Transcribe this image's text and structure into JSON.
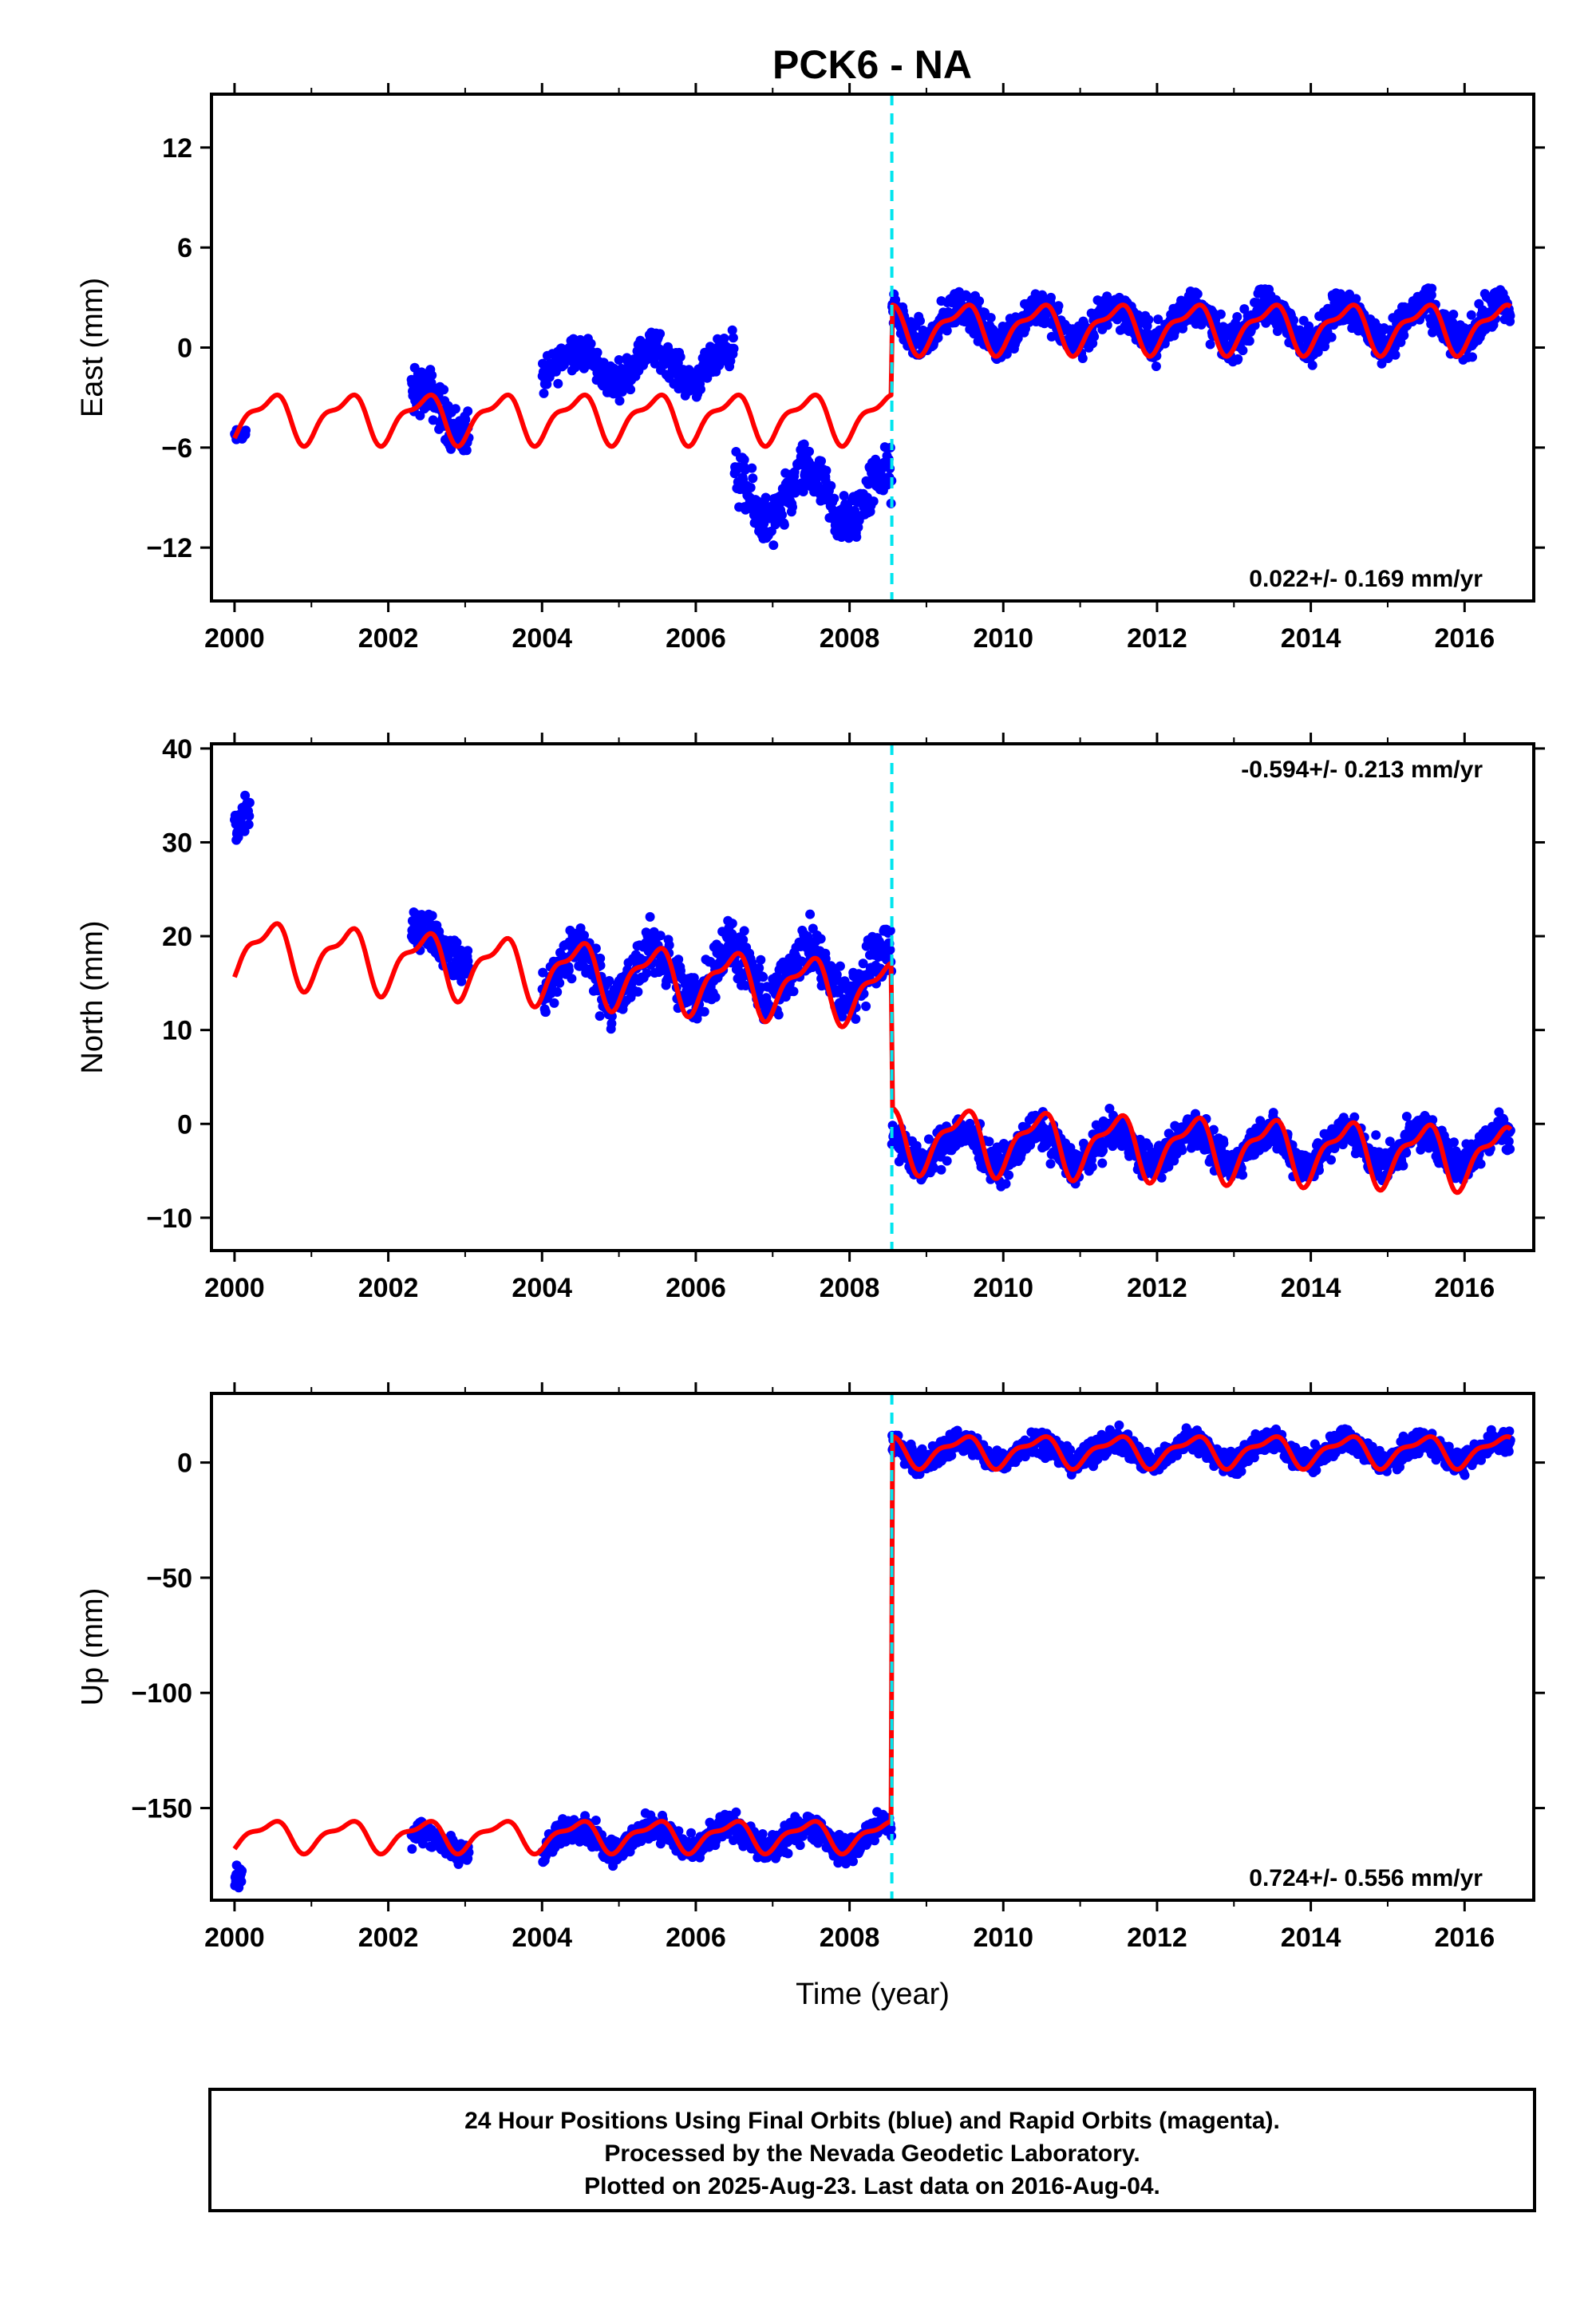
{
  "title": "PCK6 - NA",
  "colors": {
    "data": "#0000ff",
    "model": "#ff0000",
    "offset_marker": "#00e5ee",
    "frame": "#000000"
  },
  "chart_data": [
    {
      "type": "scatter",
      "ylabel": "East (mm)",
      "xlabel": "",
      "xlim": [
        1999.7,
        2016.9
      ],
      "ylim": [
        -15.2,
        15.2
      ],
      "xticks": [
        "2000",
        "2002",
        "2004",
        "2006",
        "2008",
        "2010",
        "2012",
        "2014",
        "2016"
      ],
      "yticks": [
        "12",
        "6",
        "0",
        "-6",
        "-12"
      ],
      "yticks_values": [
        12,
        6,
        0,
        -6,
        -12
      ],
      "rate_label": "0.022+/- 0.169 mm/yr",
      "rate_position": "bottom-right",
      "offset_epoch": 2008.55,
      "series": [
        {
          "kind": "daily-positions",
          "segments": [
            {
              "x": [
                2000.0,
                2000.15
              ],
              "center": -5.0,
              "amp": 0.6
            },
            {
              "x": [
                2002.3,
                2003.05
              ],
              "center": -3.8,
              "amp": 2.2
            },
            {
              "x": [
                2004.0,
                2006.5
              ],
              "center": -1.0,
              "amp": 1.6
            },
            {
              "x": [
                2006.5,
                2008.55
              ],
              "center": -9.0,
              "amp": 2.5
            },
            {
              "x": [
                2008.55,
                2016.6
              ],
              "center": 1.4,
              "amp": 1.8
            }
          ]
        },
        {
          "kind": "model",
          "x": [
            2000.0,
            2016.6
          ],
          "pre_offset_mean": -4.2,
          "post_offset_mean": 1.2,
          "seasonal_amp": 1.3
        }
      ]
    },
    {
      "type": "scatter",
      "ylabel": "North (mm)",
      "xlabel": "",
      "xlim": [
        1999.7,
        2016.9
      ],
      "ylim": [
        -13.5,
        40.5
      ],
      "xticks": [
        "2000",
        "2002",
        "2004",
        "2006",
        "2008",
        "2010",
        "2012",
        "2014",
        "2016"
      ],
      "yticks": [
        "40",
        "30",
        "20",
        "10",
        "0",
        "-10"
      ],
      "yticks_values": [
        40,
        30,
        20,
        10,
        0,
        -10
      ],
      "rate_label": "-0.594+/- 0.213 mm/yr",
      "rate_position": "top-right",
      "offset_epoch": 2008.55,
      "series": [
        {
          "kind": "daily-positions",
          "segments": [
            {
              "x": [
                2000.0,
                2000.2
              ],
              "center": 34.0,
              "amp": 4.0
            },
            {
              "x": [
                2002.3,
                2003.05
              ],
              "center": 19.0,
              "amp": 3.0
            },
            {
              "x": [
                2004.0,
                2008.55
              ],
              "center": 16.0,
              "amp": 4.5
            },
            {
              "x": [
                2008.55,
                2016.6
              ],
              "center": -2.5,
              "amp": 3.0
            }
          ]
        },
        {
          "kind": "model",
          "x": [
            2000.0,
            2016.6
          ],
          "pre_offset_start": 18.5,
          "pre_offset_end": 14.0,
          "post_offset_start": -1.5,
          "post_offset_end": -3.5,
          "seasonal_amp": 3.0
        }
      ]
    },
    {
      "type": "scatter",
      "ylabel": "Up (mm)",
      "xlabel": "Time (year)",
      "xlim": [
        1999.7,
        2016.9
      ],
      "ylim": [
        -190,
        30
      ],
      "xticks": [
        "2000",
        "2002",
        "2004",
        "2006",
        "2008",
        "2010",
        "2012",
        "2014",
        "2016"
      ],
      "yticks": [
        "0",
        "-50",
        "-100",
        "-150"
      ],
      "yticks_values": [
        0,
        -50,
        -100,
        -150
      ],
      "rate_label": "0.724+/- 0.556 mm/yr",
      "rate_position": "bottom-right",
      "offset_epoch": 2008.55,
      "series": [
        {
          "kind": "daily-positions",
          "segments": [
            {
              "x": [
                2000.0,
                2000.1
              ],
              "center": -175.0,
              "amp": 8.0
            },
            {
              "x": [
                2002.3,
                2003.05
              ],
              "center": -165.0,
              "amp": 8.0
            },
            {
              "x": [
                2004.0,
                2008.55
              ],
              "center": -163.0,
              "amp": 9.0
            },
            {
              "x": [
                2008.55,
                2016.6
              ],
              "center": 5.0,
              "amp": 8.0
            }
          ]
        },
        {
          "kind": "model",
          "x": [
            2000.0,
            2016.6
          ],
          "pre_offset_mean": -162.0,
          "post_offset_mean": 5.0,
          "seasonal_amp": 6.0
        }
      ]
    }
  ],
  "footer": {
    "line1": "24 Hour Positions Using Final Orbits (blue) and Rapid Orbits (magenta).",
    "line2": "Processed by the Nevada Geodetic Laboratory.",
    "line3": "Plotted on 2025-Aug-23. Last data on 2016-Aug-04."
  }
}
